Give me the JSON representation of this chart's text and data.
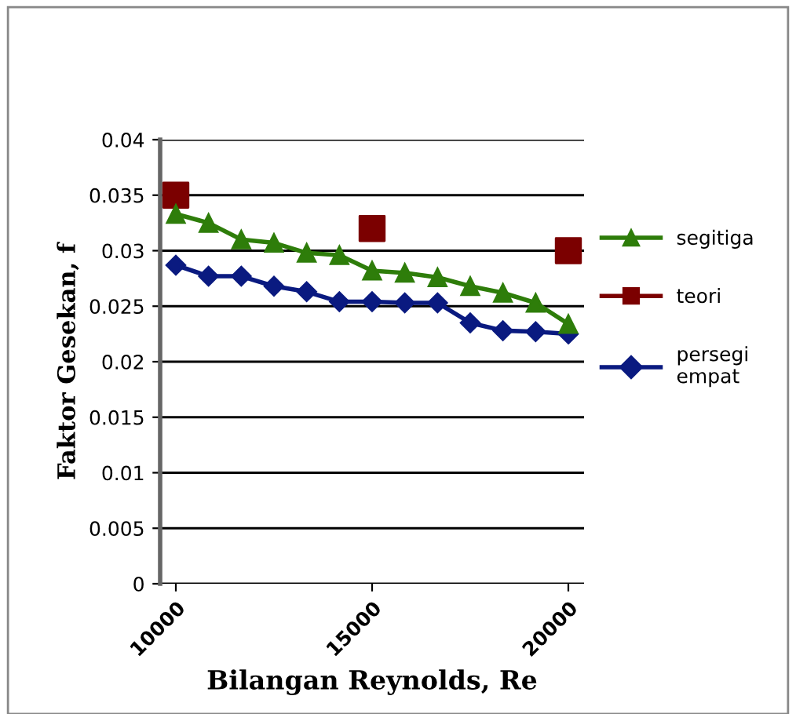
{
  "chart_data": {
    "type": "line",
    "xlabel": "Bilangan Reynolds, Re",
    "ylabel": "Faktor Gesekan, f",
    "xlim": [
      9600,
      20400
    ],
    "xticks": [
      10000,
      15000,
      20000
    ],
    "ylim": [
      0,
      0.04
    ],
    "yticks": [
      0,
      0.005,
      0.01,
      0.015,
      0.02,
      0.025,
      0.03,
      0.035,
      0.04
    ],
    "grid": "y",
    "legend": "right",
    "series": [
      {
        "name": "segitiga",
        "color": "#2e7d0a",
        "marker": "triangle",
        "x": [
          10000,
          10833,
          11667,
          12500,
          13333,
          14167,
          15000,
          15833,
          16667,
          17500,
          18333,
          19167,
          20000
        ],
        "values": [
          0.0333,
          0.0325,
          0.031,
          0.0307,
          0.0298,
          0.0296,
          0.0282,
          0.028,
          0.0276,
          0.0268,
          0.0262,
          0.0253,
          0.0234
        ]
      },
      {
        "name": "teori",
        "color": "#7b0000",
        "marker": "square",
        "type": "scatter",
        "x": [
          10000,
          15000,
          20000
        ],
        "values": [
          0.035,
          0.032,
          0.03
        ]
      },
      {
        "name": "persegi empat",
        "color": "#0a1a80",
        "marker": "diamond",
        "x": [
          10000,
          10833,
          11667,
          12500,
          13333,
          14167,
          15000,
          15833,
          16667,
          17500,
          18333,
          19167,
          20000
        ],
        "values": [
          0.0287,
          0.0277,
          0.0277,
          0.0268,
          0.0263,
          0.0254,
          0.0254,
          0.0253,
          0.0253,
          0.0235,
          0.0228,
          0.0227,
          0.0225
        ]
      }
    ]
  }
}
